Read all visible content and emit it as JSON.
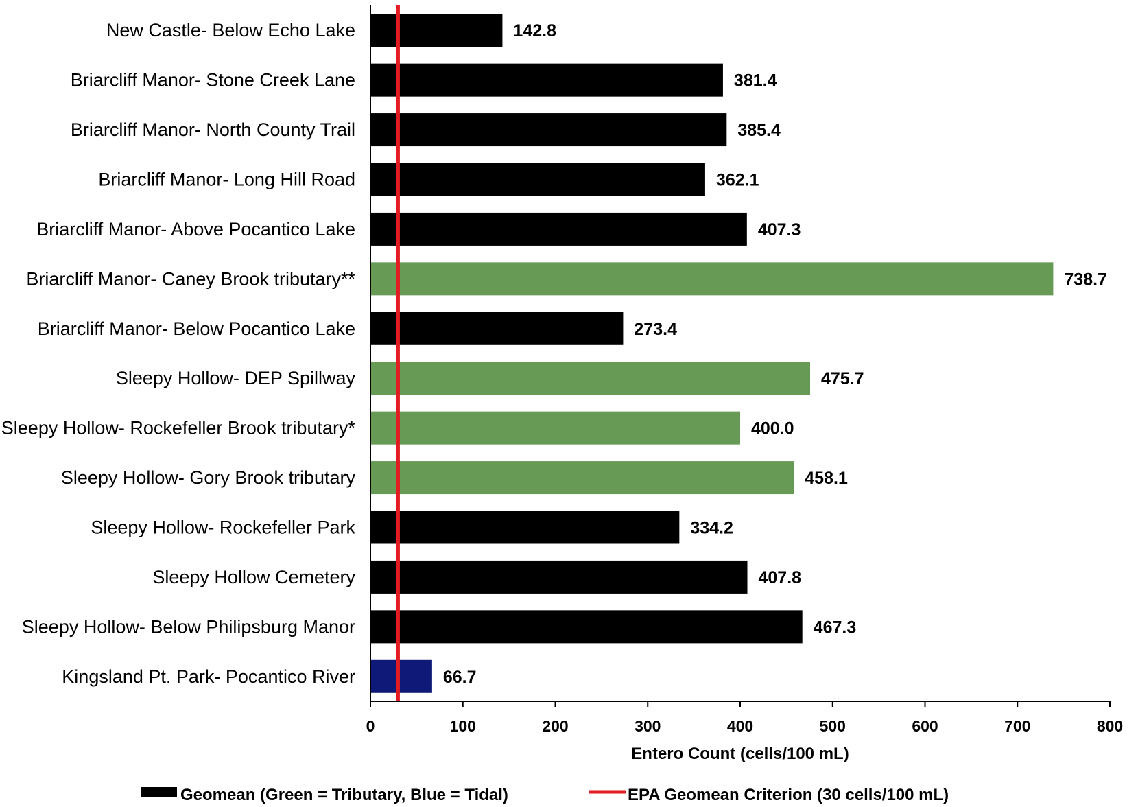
{
  "chart_data": {
    "type": "bar",
    "orientation": "horizontal",
    "categories": [
      "New Castle- Below Echo Lake",
      "Briarcliff Manor- Stone Creek Lane",
      "Briarcliff Manor- North County Trail",
      "Briarcliff Manor- Long Hill Road",
      "Briarcliff Manor- Above Pocantico Lake",
      "Briarcliff Manor- Caney Brook tributary**",
      "Briarcliff Manor- Below Pocantico Lake",
      "Sleepy Hollow- DEP Spillway",
      "Sleepy Hollow- Rockefeller Brook tributary*",
      "Sleepy Hollow- Gory Brook tributary",
      "Sleepy Hollow- Rockefeller Park",
      "Sleepy Hollow Cemetery",
      "Sleepy Hollow- Below Philipsburg Manor",
      "Kingsland Pt. Park- Pocantico River"
    ],
    "values": [
      142.8,
      381.4,
      385.4,
      362.1,
      407.3,
      738.7,
      273.4,
      475.7,
      400.0,
      458.1,
      334.2,
      407.8,
      467.3,
      66.7
    ],
    "value_labels": [
      "142.8",
      "381.4",
      "385.4",
      "362.1",
      "407.3",
      "738.7",
      "273.4",
      "475.7",
      "400.0",
      "458.1",
      "334.2",
      "407.8",
      "467.3",
      "66.7"
    ],
    "bar_types": [
      "main",
      "main",
      "main",
      "main",
      "main",
      "tributary",
      "main",
      "tributary",
      "tributary",
      "tributary",
      "main",
      "main",
      "main",
      "tidal"
    ],
    "colors": {
      "main": "#000000",
      "tributary": "#669a55",
      "tidal": "#0f1a78",
      "criterion": "#e31b23"
    },
    "xlim": [
      0,
      800
    ],
    "xticks": [
      0,
      100,
      200,
      300,
      400,
      500,
      600,
      700,
      800
    ],
    "xlabel": "Entero Count (cells/100 mL)",
    "criterion_value": 30,
    "legend_position": "bottom",
    "legend": [
      {
        "name": "Geomean (Green = Tributary, Blue = Tidal)",
        "kind": "bar"
      },
      {
        "name": "EPA Geomean Criterion (30 cells/100 mL)",
        "kind": "line"
      }
    ],
    "grid": false
  }
}
